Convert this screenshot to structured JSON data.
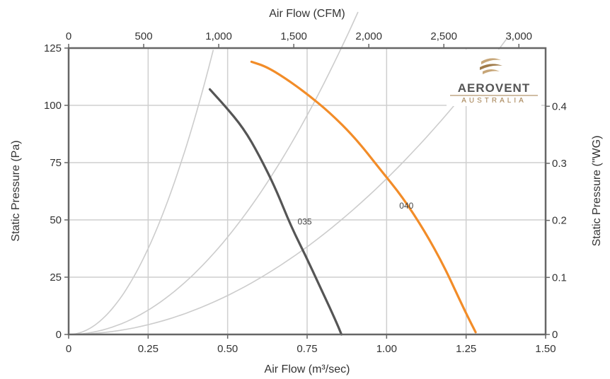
{
  "chart_data": {
    "type": "line",
    "title": "",
    "xlabel_bottom": "Air Flow (m³/sec)",
    "xlabel_top": "Air Flow (CFM)",
    "ylabel_left": "Static Pressure (Pa)",
    "ylabel_right": "Static Pressure (\"WG)",
    "xlim": [
      0,
      1.5
    ],
    "ylim": [
      0,
      125
    ],
    "x_top_lim": [
      0,
      3178
    ],
    "y_right_lim": [
      0,
      0.502
    ],
    "x_ticks": [
      "0",
      "0.25",
      "0.50",
      "0.75",
      "1.00",
      "1.25",
      "1.50"
    ],
    "x_tick_values": [
      0,
      0.25,
      0.5,
      0.75,
      1.0,
      1.25,
      1.5
    ],
    "y_ticks": [
      "0",
      "25",
      "50",
      "75",
      "100",
      "125"
    ],
    "y_tick_values": [
      0,
      25,
      50,
      75,
      100,
      125
    ],
    "x_top_ticks": [
      "0",
      "500",
      "1,000",
      "1,500",
      "2,000",
      "2,500",
      "3,000"
    ],
    "x_top_tick_values": [
      0,
      500,
      1000,
      1500,
      2000,
      2500,
      3000
    ],
    "y_right_ticks": [
      "0",
      "0.1",
      "0.2",
      "0.3",
      "0.4"
    ],
    "y_right_tick_values": [
      0,
      0.1,
      0.2,
      0.3,
      0.4
    ],
    "grid": true,
    "colors": {
      "series_035": "#555555",
      "series_040": "#f28c28",
      "system_curves": "#cccccc",
      "grid": "#cfcfcf",
      "frame": "#666666"
    },
    "series": [
      {
        "name": "035",
        "x": [
          0.444,
          0.49,
          0.55,
          0.6,
          0.65,
          0.7,
          0.75,
          0.8,
          0.84,
          0.858
        ],
        "y": [
          107,
          100,
          90,
          78,
          64,
          47,
          33,
          18,
          6,
          0
        ]
      },
      {
        "name": "040",
        "x": [
          0.575,
          0.62,
          0.68,
          0.75,
          0.82,
          0.9,
          0.98,
          1.05,
          1.12,
          1.18,
          1.23,
          1.265,
          1.28
        ],
        "y": [
          119,
          117,
          112,
          105,
          97,
          86,
          72,
          60,
          45,
          30,
          15,
          5,
          1
        ]
      }
    ],
    "system_curves": [
      {
        "k": 600,
        "x_max": 0.455
      },
      {
        "k": 170,
        "x_max": 0.91
      },
      {
        "k": 68,
        "x_max": 1.38
      }
    ],
    "curve_labels": [
      {
        "text": "035",
        "x": 0.72,
        "y": 48
      },
      {
        "text": "040",
        "x": 1.04,
        "y": 55
      }
    ]
  },
  "logo": {
    "name": "AEROVENT",
    "sub": "AUSTRALIA",
    "colors": {
      "text": "#555555",
      "accent": "#a07b4a"
    }
  }
}
